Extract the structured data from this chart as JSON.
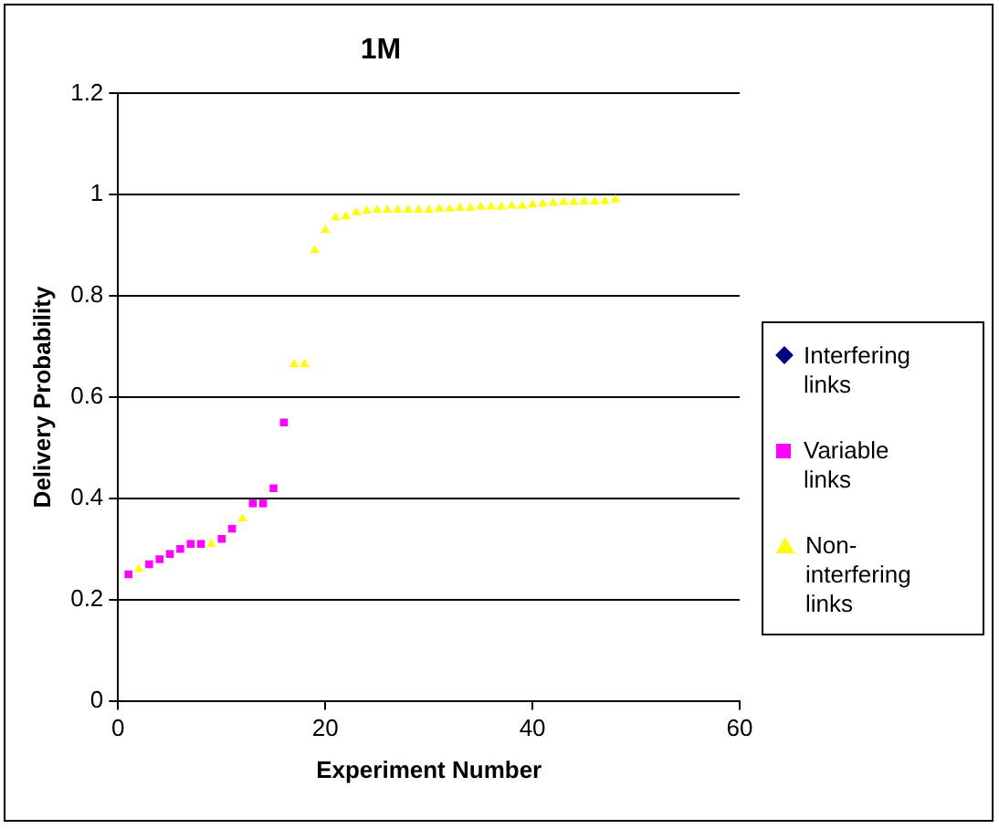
{
  "chart_data": {
    "type": "scatter",
    "title": "1M",
    "xlabel": "Experiment Number",
    "ylabel": "Delivery Probability",
    "xlim": [
      0,
      60
    ],
    "xticks": [
      0,
      20,
      40,
      60
    ],
    "ylim": [
      0,
      1.2
    ],
    "yticks": [
      0,
      0.2,
      0.4,
      0.6,
      0.8,
      1,
      1.2
    ],
    "grid": "y",
    "legend": "right",
    "series": [
      {
        "name": "Interfering links",
        "color": "#000080",
        "marker": "diamond"
      },
      {
        "name": "Variable links",
        "color": "#ff00ff",
        "marker": "square",
        "x": [
          1,
          3,
          4,
          5,
          6,
          7,
          8,
          10,
          11,
          13,
          14,
          15,
          16
        ],
        "values": [
          0.25,
          0.27,
          0.28,
          0.29,
          0.3,
          0.31,
          0.31,
          0.32,
          0.34,
          0.39,
          0.39,
          0.42,
          0.55
        ]
      },
      {
        "name": "Non-interfering links",
        "color": "#ffff00",
        "marker": "triangle",
        "x": [
          2,
          9,
          12,
          17,
          18,
          19,
          20,
          21,
          22,
          23,
          24,
          25,
          26,
          27,
          28,
          29,
          30,
          31,
          32,
          33,
          34,
          35,
          36,
          37,
          38,
          39,
          40,
          41,
          42,
          43,
          44,
          45,
          46,
          47,
          48
        ],
        "values": [
          0.26,
          0.31,
          0.36,
          0.665,
          0.665,
          0.89,
          0.93,
          0.955,
          0.957,
          0.965,
          0.968,
          0.97,
          0.97,
          0.97,
          0.97,
          0.97,
          0.97,
          0.972,
          0.972,
          0.974,
          0.974,
          0.976,
          0.976,
          0.976,
          0.978,
          0.978,
          0.98,
          0.982,
          0.984,
          0.985,
          0.985,
          0.986,
          0.986,
          0.987,
          0.99
        ]
      }
    ]
  }
}
